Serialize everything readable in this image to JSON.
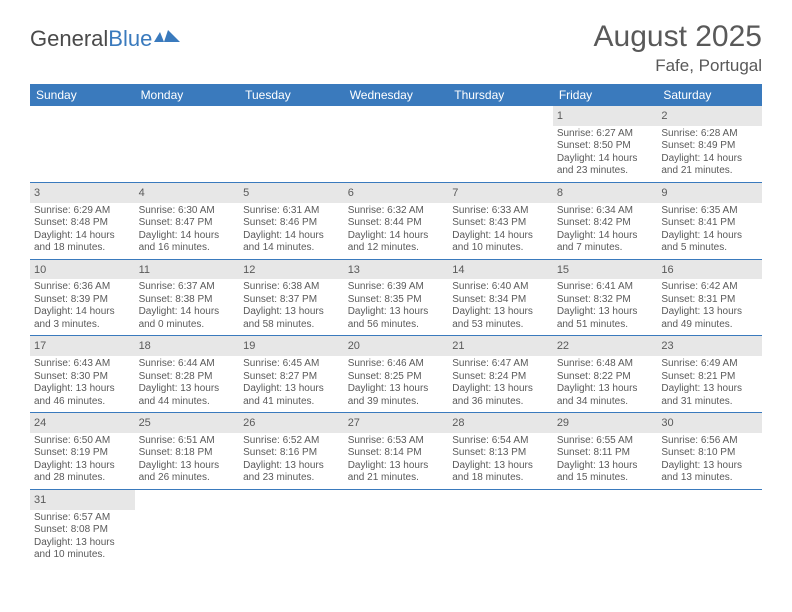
{
  "logo": {
    "general": "General",
    "blue": "Blue"
  },
  "title": "August 2025",
  "location": "Fafe, Portugal",
  "colors": {
    "header_bg": "#3a7abd",
    "header_text": "#ffffff",
    "daynum_bg": "#e7e7e7",
    "text": "#5a5a5a",
    "divider": "#3a7abd",
    "background": "#ffffff"
  },
  "typography": {
    "title_fontsize": 30,
    "location_fontsize": 17,
    "weekday_fontsize": 12,
    "cell_fontsize": 10,
    "daynum_fontsize": 11
  },
  "weekdays": [
    "Sunday",
    "Monday",
    "Tuesday",
    "Wednesday",
    "Thursday",
    "Friday",
    "Saturday"
  ],
  "weeks": [
    [
      null,
      null,
      null,
      null,
      null,
      {
        "n": "1",
        "sr": "Sunrise: 6:27 AM",
        "ss": "Sunset: 8:50 PM",
        "dl1": "Daylight: 14 hours",
        "dl2": "and 23 minutes."
      },
      {
        "n": "2",
        "sr": "Sunrise: 6:28 AM",
        "ss": "Sunset: 8:49 PM",
        "dl1": "Daylight: 14 hours",
        "dl2": "and 21 minutes."
      }
    ],
    [
      {
        "n": "3",
        "sr": "Sunrise: 6:29 AM",
        "ss": "Sunset: 8:48 PM",
        "dl1": "Daylight: 14 hours",
        "dl2": "and 18 minutes."
      },
      {
        "n": "4",
        "sr": "Sunrise: 6:30 AM",
        "ss": "Sunset: 8:47 PM",
        "dl1": "Daylight: 14 hours",
        "dl2": "and 16 minutes."
      },
      {
        "n": "5",
        "sr": "Sunrise: 6:31 AM",
        "ss": "Sunset: 8:46 PM",
        "dl1": "Daylight: 14 hours",
        "dl2": "and 14 minutes."
      },
      {
        "n": "6",
        "sr": "Sunrise: 6:32 AM",
        "ss": "Sunset: 8:44 PM",
        "dl1": "Daylight: 14 hours",
        "dl2": "and 12 minutes."
      },
      {
        "n": "7",
        "sr": "Sunrise: 6:33 AM",
        "ss": "Sunset: 8:43 PM",
        "dl1": "Daylight: 14 hours",
        "dl2": "and 10 minutes."
      },
      {
        "n": "8",
        "sr": "Sunrise: 6:34 AM",
        "ss": "Sunset: 8:42 PM",
        "dl1": "Daylight: 14 hours",
        "dl2": "and 7 minutes."
      },
      {
        "n": "9",
        "sr": "Sunrise: 6:35 AM",
        "ss": "Sunset: 8:41 PM",
        "dl1": "Daylight: 14 hours",
        "dl2": "and 5 minutes."
      }
    ],
    [
      {
        "n": "10",
        "sr": "Sunrise: 6:36 AM",
        "ss": "Sunset: 8:39 PM",
        "dl1": "Daylight: 14 hours",
        "dl2": "and 3 minutes."
      },
      {
        "n": "11",
        "sr": "Sunrise: 6:37 AM",
        "ss": "Sunset: 8:38 PM",
        "dl1": "Daylight: 14 hours",
        "dl2": "and 0 minutes."
      },
      {
        "n": "12",
        "sr": "Sunrise: 6:38 AM",
        "ss": "Sunset: 8:37 PM",
        "dl1": "Daylight: 13 hours",
        "dl2": "and 58 minutes."
      },
      {
        "n": "13",
        "sr": "Sunrise: 6:39 AM",
        "ss": "Sunset: 8:35 PM",
        "dl1": "Daylight: 13 hours",
        "dl2": "and 56 minutes."
      },
      {
        "n": "14",
        "sr": "Sunrise: 6:40 AM",
        "ss": "Sunset: 8:34 PM",
        "dl1": "Daylight: 13 hours",
        "dl2": "and 53 minutes."
      },
      {
        "n": "15",
        "sr": "Sunrise: 6:41 AM",
        "ss": "Sunset: 8:32 PM",
        "dl1": "Daylight: 13 hours",
        "dl2": "and 51 minutes."
      },
      {
        "n": "16",
        "sr": "Sunrise: 6:42 AM",
        "ss": "Sunset: 8:31 PM",
        "dl1": "Daylight: 13 hours",
        "dl2": "and 49 minutes."
      }
    ],
    [
      {
        "n": "17",
        "sr": "Sunrise: 6:43 AM",
        "ss": "Sunset: 8:30 PM",
        "dl1": "Daylight: 13 hours",
        "dl2": "and 46 minutes."
      },
      {
        "n": "18",
        "sr": "Sunrise: 6:44 AM",
        "ss": "Sunset: 8:28 PM",
        "dl1": "Daylight: 13 hours",
        "dl2": "and 44 minutes."
      },
      {
        "n": "19",
        "sr": "Sunrise: 6:45 AM",
        "ss": "Sunset: 8:27 PM",
        "dl1": "Daylight: 13 hours",
        "dl2": "and 41 minutes."
      },
      {
        "n": "20",
        "sr": "Sunrise: 6:46 AM",
        "ss": "Sunset: 8:25 PM",
        "dl1": "Daylight: 13 hours",
        "dl2": "and 39 minutes."
      },
      {
        "n": "21",
        "sr": "Sunrise: 6:47 AM",
        "ss": "Sunset: 8:24 PM",
        "dl1": "Daylight: 13 hours",
        "dl2": "and 36 minutes."
      },
      {
        "n": "22",
        "sr": "Sunrise: 6:48 AM",
        "ss": "Sunset: 8:22 PM",
        "dl1": "Daylight: 13 hours",
        "dl2": "and 34 minutes."
      },
      {
        "n": "23",
        "sr": "Sunrise: 6:49 AM",
        "ss": "Sunset: 8:21 PM",
        "dl1": "Daylight: 13 hours",
        "dl2": "and 31 minutes."
      }
    ],
    [
      {
        "n": "24",
        "sr": "Sunrise: 6:50 AM",
        "ss": "Sunset: 8:19 PM",
        "dl1": "Daylight: 13 hours",
        "dl2": "and 28 minutes."
      },
      {
        "n": "25",
        "sr": "Sunrise: 6:51 AM",
        "ss": "Sunset: 8:18 PM",
        "dl1": "Daylight: 13 hours",
        "dl2": "and 26 minutes."
      },
      {
        "n": "26",
        "sr": "Sunrise: 6:52 AM",
        "ss": "Sunset: 8:16 PM",
        "dl1": "Daylight: 13 hours",
        "dl2": "and 23 minutes."
      },
      {
        "n": "27",
        "sr": "Sunrise: 6:53 AM",
        "ss": "Sunset: 8:14 PM",
        "dl1": "Daylight: 13 hours",
        "dl2": "and 21 minutes."
      },
      {
        "n": "28",
        "sr": "Sunrise: 6:54 AM",
        "ss": "Sunset: 8:13 PM",
        "dl1": "Daylight: 13 hours",
        "dl2": "and 18 minutes."
      },
      {
        "n": "29",
        "sr": "Sunrise: 6:55 AM",
        "ss": "Sunset: 8:11 PM",
        "dl1": "Daylight: 13 hours",
        "dl2": "and 15 minutes."
      },
      {
        "n": "30",
        "sr": "Sunrise: 6:56 AM",
        "ss": "Sunset: 8:10 PM",
        "dl1": "Daylight: 13 hours",
        "dl2": "and 13 minutes."
      }
    ],
    [
      {
        "n": "31",
        "sr": "Sunrise: 6:57 AM",
        "ss": "Sunset: 8:08 PM",
        "dl1": "Daylight: 13 hours",
        "dl2": "and 10 minutes."
      },
      null,
      null,
      null,
      null,
      null,
      null
    ]
  ]
}
